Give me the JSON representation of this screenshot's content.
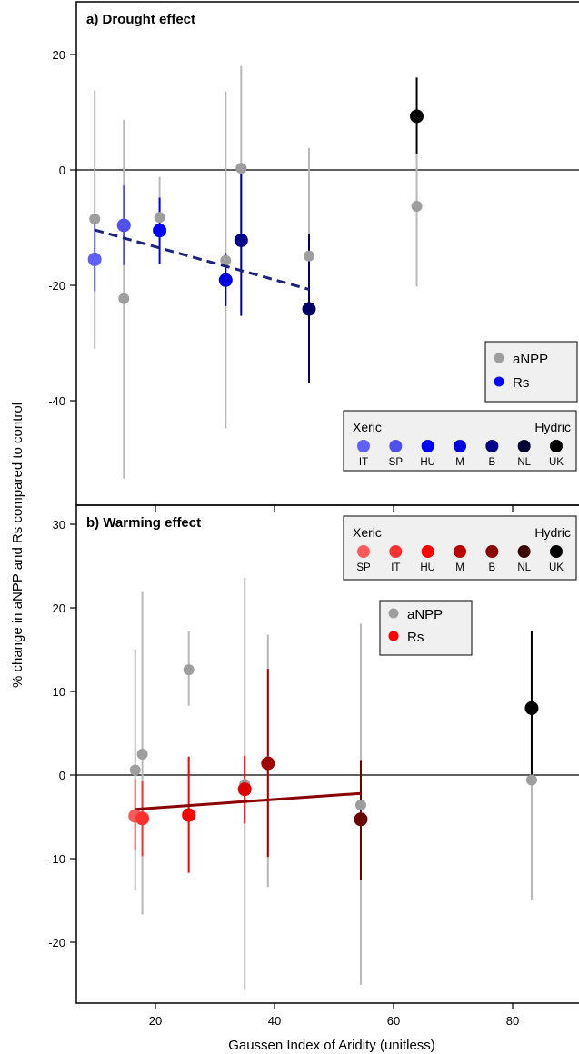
{
  "colors": {
    "anpp": "#9e9e9e",
    "anpp_bar": "#b8b8b8",
    "axis": "#000000",
    "legend_bg": "#f0f0f0"
  },
  "chart_data": [
    {
      "type": "scatter",
      "title": "a) Drought effect",
      "xlabel": "",
      "ylabel": "% change in aNPP and Rs compared to control",
      "xlim": [
        8,
        92
      ],
      "ylim": [
        -58,
        28
      ],
      "yticks": [
        20,
        0,
        -20,
        -40
      ],
      "xticks": [
        20,
        40,
        60,
        80
      ],
      "hline": 0,
      "series": [
        {
          "name": "aNPP",
          "points": [
            {
              "x": 9.8,
              "y": -8.5,
              "lo": -31,
              "hi": 13.8
            },
            {
              "x": 14.7,
              "y": -22.3,
              "lo": -53.5,
              "hi": 8.7
            },
            {
              "x": 20.7,
              "y": -8.2,
              "lo": -11.8,
              "hi": -1.2
            },
            {
              "x": 31.8,
              "y": -15.7,
              "lo": -44.8,
              "hi": 13.6
            },
            {
              "x": 34.4,
              "y": 0.3,
              "lo": -17.5,
              "hi": 18
            },
            {
              "x": 45.8,
              "y": -14.9,
              "lo": -34.5,
              "hi": 3.8
            },
            {
              "x": 63.9,
              "y": -6.3,
              "lo": -20.2,
              "hi": 2.8
            }
          ]
        },
        {
          "name": "Rs",
          "points": [
            {
              "x": 9.8,
              "y": -15.5,
              "lo": -21,
              "hi": -8.2,
              "color": "#6060ff"
            },
            {
              "x": 14.7,
              "y": -9.6,
              "lo": -16.5,
              "hi": -2.7,
              "color": "#5050ee"
            },
            {
              "x": 20.7,
              "y": -10.5,
              "lo": -16.3,
              "hi": -4.8,
              "color": "#0000ff"
            },
            {
              "x": 31.8,
              "y": -19.1,
              "lo": -23.6,
              "hi": -14.4,
              "color": "#0000dd"
            },
            {
              "x": 34.4,
              "y": -12.2,
              "lo": -25.3,
              "hi": 0.8,
              "color": "#00008b"
            },
            {
              "x": 45.8,
              "y": -24.1,
              "lo": -37,
              "hi": -11.2,
              "color": "#000066"
            },
            {
              "x": 63.9,
              "y": 9.3,
              "lo": 2.7,
              "hi": 16,
              "color": "#000000"
            }
          ]
        }
      ],
      "trend": {
        "x": [
          9.8,
          45.8
        ],
        "y": [
          -10.4,
          -20.7
        ],
        "color": "#1a237e",
        "style": "dashed"
      },
      "legend": {
        "position": "right",
        "entries": [
          "aNPP",
          "Rs"
        ]
      },
      "site_scale": {
        "left_label": "Xeric",
        "right_label": "Hydric",
        "sites": [
          {
            "label": "IT",
            "color": "#6060ff"
          },
          {
            "label": "SP",
            "color": "#5050ee"
          },
          {
            "label": "HU",
            "color": "#0000ff"
          },
          {
            "label": "M",
            "color": "#0000dd"
          },
          {
            "label": "B",
            "color": "#00008b"
          },
          {
            "label": "NL",
            "color": "#000033"
          },
          {
            "label": "UK",
            "color": "#000000"
          }
        ]
      }
    },
    {
      "type": "scatter",
      "title": "b) Warming effect",
      "xlabel": "Gaussen Index of Aridity (unitless)",
      "ylabel": "% change in aNPP and Rs compared to control",
      "xlim": [
        8,
        92
      ],
      "ylim": [
        -27.5,
        32
      ],
      "yticks": [
        30,
        20,
        10,
        0,
        -10,
        -20
      ],
      "xticks": [
        20,
        40,
        60,
        80
      ],
      "hline": 0,
      "series": [
        {
          "name": "aNPP",
          "points": [
            {
              "x": 16.6,
              "y": 0.6,
              "lo": -13.8,
              "hi": 15
            },
            {
              "x": 17.8,
              "y": 2.5,
              "lo": -16.7,
              "hi": 22
            },
            {
              "x": 25.6,
              "y": 12.6,
              "lo": 8.3,
              "hi": 17.2
            },
            {
              "x": 35,
              "y": -1.1,
              "lo": -25.7,
              "hi": 23.6
            },
            {
              "x": 38.9,
              "y": 1.6,
              "lo": -13.4,
              "hi": 16.8
            },
            {
              "x": 54.5,
              "y": -3.6,
              "lo": -25.1,
              "hi": 18.1
            },
            {
              "x": 83.2,
              "y": -0.6,
              "lo": -14.9,
              "hi": 7.2
            }
          ]
        },
        {
          "name": "Rs",
          "points": [
            {
              "x": 16.6,
              "y": -4.9,
              "lo": -9,
              "hi": -0.5,
              "color": "#ff5a5a"
            },
            {
              "x": 17.8,
              "y": -5.2,
              "lo": -9.7,
              "hi": -0.7,
              "color": "#ff3030"
            },
            {
              "x": 25.6,
              "y": -4.8,
              "lo": -11.7,
              "hi": 2.2,
              "color": "#ff0000"
            },
            {
              "x": 35,
              "y": -1.7,
              "lo": -5.8,
              "hi": 2.3,
              "color": "#dd0000"
            },
            {
              "x": 38.9,
              "y": 1.4,
              "lo": -9.8,
              "hi": 12.7,
              "color": "#a00000"
            },
            {
              "x": 54.5,
              "y": -5.3,
              "lo": -12.5,
              "hi": 1.8,
              "color": "#6a0000"
            },
            {
              "x": 83.2,
              "y": 8,
              "lo": -1,
              "hi": 17.2,
              "color": "#000000"
            }
          ]
        }
      ],
      "trend": {
        "x": [
          16.6,
          54.5
        ],
        "y": [
          -4.1,
          -2.2
        ],
        "color": "#8b0000",
        "style": "solid"
      },
      "legend": {
        "position": "top-center",
        "entries": [
          "aNPP",
          "Rs"
        ]
      },
      "site_scale": {
        "left_label": "Xeric",
        "right_label": "Hydric",
        "sites": [
          {
            "label": "SP",
            "color": "#ff5a5a"
          },
          {
            "label": "IT",
            "color": "#ff3030"
          },
          {
            "label": "HU",
            "color": "#ff0000"
          },
          {
            "label": "M",
            "color": "#bb0000"
          },
          {
            "label": "B",
            "color": "#8b0000"
          },
          {
            "label": "NL",
            "color": "#3a0000"
          },
          {
            "label": "UK",
            "color": "#000000"
          }
        ]
      }
    }
  ]
}
